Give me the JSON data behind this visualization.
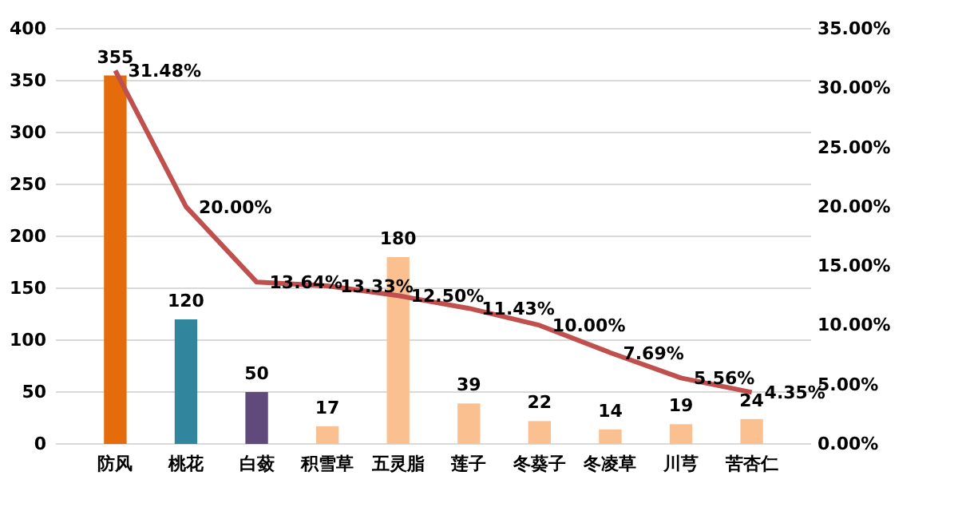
{
  "chart_data": {
    "type": "bar",
    "categories": [
      "防风",
      "桃花",
      "白蔹",
      "积雪草",
      "五灵脂",
      "莲子",
      "冬葵子",
      "冬凌草",
      "川芎",
      "苦杏仁"
    ],
    "series": [
      {
        "colors": [
          "#e46c0a",
          "#31859c",
          "#604a7b",
          "#fac090",
          "#fac090",
          "#fac090",
          "#fac090",
          "#fac090",
          "#fac090",
          "#fac090"
        ],
        "values": [
          355,
          120,
          50,
          17,
          180,
          39,
          22,
          14,
          19,
          24
        ],
        "value_labels": [
          "355",
          "120",
          "50",
          "17",
          "180",
          "39",
          "22",
          "14",
          "19",
          "24"
        ]
      },
      {
        "type": "line",
        "axis": "y2",
        "color": "#c0504d",
        "values": [
          31.48,
          20.0,
          13.64,
          13.33,
          12.5,
          11.43,
          10.0,
          7.69,
          5.56,
          4.35
        ],
        "value_labels": [
          "31.48%",
          "20.00%",
          "13.64%",
          "13.33%",
          "12.50%",
          "11.43%",
          "10.00%",
          "7.69%",
          "5.56%",
          "4.35%"
        ]
      }
    ],
    "ylim": [
      0,
      400
    ],
    "yticks": [
      0,
      50,
      100,
      150,
      200,
      250,
      300,
      350,
      400
    ],
    "y2lim": [
      0,
      35
    ],
    "y2ticks": [
      {
        "value": 0,
        "label": "0.00%"
      },
      {
        "value": 5,
        "label": "5.00%"
      },
      {
        "value": 10,
        "label": "10.00%"
      },
      {
        "value": 15,
        "label": "15.00%"
      },
      {
        "value": 20,
        "label": "20.00%"
      },
      {
        "value": 25,
        "label": "25.00%"
      },
      {
        "value": 30,
        "label": "30.00%"
      },
      {
        "value": 35,
        "label": "35.00%"
      }
    ],
    "grid": "y",
    "marker": "none",
    "line_style": "solid"
  }
}
